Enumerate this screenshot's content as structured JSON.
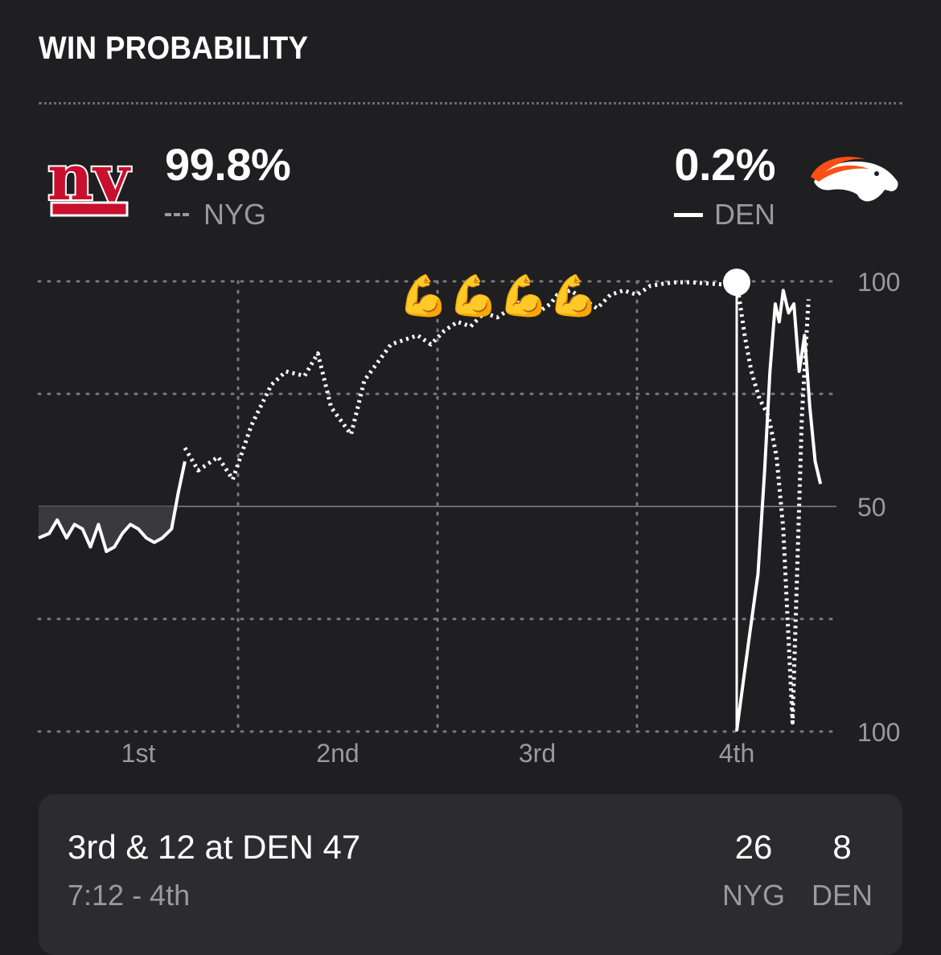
{
  "header": {
    "title": "WIN PROBABILITY"
  },
  "teams": {
    "left": {
      "abbr": "NYG",
      "probability": "99.8%",
      "line_style": "dashed",
      "logo": "ny-giants-logo",
      "color": "#c8102e"
    },
    "right": {
      "abbr": "DEN",
      "probability": "0.2%",
      "line_style": "solid",
      "logo": "broncos-logo",
      "color": "#fb4f14"
    }
  },
  "emoji": {
    "label": "💪💪💪💪",
    "icon": "flexed-biceps"
  },
  "situation": {
    "down_distance": "3rd & 12 at DEN 47",
    "clock": "7:12 - 4th",
    "score_home": "26",
    "score_home_team": "NYG",
    "score_away": "8",
    "score_away_team": "DEN"
  },
  "chart_data": {
    "type": "line",
    "title": "WIN PROBABILITY",
    "x_labels": [
      "1st",
      "2nd",
      "3rd",
      "4th"
    ],
    "y_tick_labels": [
      "100",
      "50",
      "100"
    ],
    "ylim": [
      0,
      100
    ],
    "xlim": [
      0,
      60
    ],
    "grid": true,
    "legend": "top",
    "note": "",
    "series": [
      {
        "name": "NYG",
        "style": "dotted",
        "x": [
          11.0,
          12.0,
          13.5,
          14.6,
          16.0,
          17.5,
          18.6,
          20.0,
          21.0,
          22.0,
          23.5,
          24.5,
          25.5,
          26.5,
          27.5,
          28.5,
          29.5,
          30.5,
          31.5,
          32.5,
          33.5,
          34.5,
          35.5,
          36.5,
          37.5,
          38.5,
          39.0,
          40.0,
          41.0,
          42.0,
          43.0,
          44.0,
          45.0,
          46.0,
          47.0,
          48.0,
          49.0,
          50.0,
          51.0,
          52.0,
          52.6,
          53.1,
          53.6,
          54.2,
          54.9,
          55.5,
          56.0,
          56.7,
          57.4,
          57.9
        ],
        "y": [
          63,
          58,
          61,
          56,
          68,
          77,
          80,
          79,
          84,
          72,
          66,
          78,
          82,
          86,
          87,
          88,
          86,
          89,
          91,
          90,
          93,
          92,
          94,
          96,
          93,
          95,
          97,
          98,
          96,
          94,
          97,
          98,
          97,
          99,
          99.5,
          99.8,
          99.8,
          99.6,
          99.4,
          99.2,
          98,
          88,
          80,
          74,
          70,
          61,
          45,
          2,
          70,
          96
        ]
      },
      {
        "name": "DEN",
        "style": "solid",
        "x": [
          0.0,
          0.8,
          1.4,
          2.1,
          2.7,
          3.3,
          3.9,
          4.5,
          5.1,
          5.7,
          6.3,
          6.9,
          7.5,
          8.1,
          8.7,
          9.3,
          10.0,
          10.5,
          11.0,
          52.5,
          53.4,
          54.1,
          54.6,
          55.0,
          55.4,
          55.7,
          56.0,
          56.4,
          56.8,
          57.2,
          57.6,
          58.0,
          58.4,
          58.8
        ],
        "y": [
          43,
          44,
          47,
          43,
          46,
          45,
          41,
          46,
          40,
          41,
          44,
          46,
          45,
          43,
          42,
          43,
          45,
          53,
          60,
          0.2,
          20,
          35,
          58,
          80,
          95,
          91,
          98,
          93,
          95,
          80,
          88,
          72,
          60,
          55
        ]
      }
    ],
    "annotations": [
      {
        "type": "marker",
        "x": 52.5,
        "y": 99.8,
        "label": ""
      }
    ]
  }
}
